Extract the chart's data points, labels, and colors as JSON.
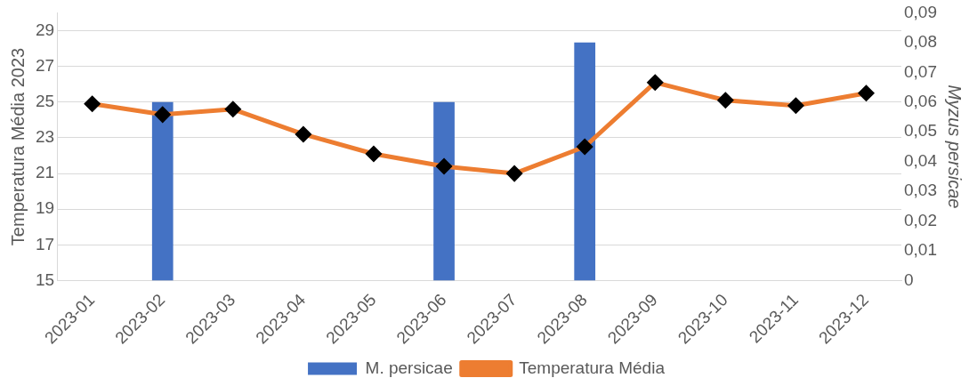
{
  "chart_data": {
    "type": "bar",
    "ylabel": "Temperatura Média 2023",
    "y2label": "Myzus persicae",
    "categories": [
      "2023-01",
      "2023-02",
      "2023-03",
      "2023-04",
      "2023-05",
      "2023-06",
      "2023-07",
      "2023-08",
      "2023-09",
      "2023-10",
      "2023-11",
      "2023-12"
    ],
    "series": [
      {
        "name": "M. persicae",
        "axis": "y2",
        "color": "#4472c4",
        "values": [
          0,
          0.06,
          0,
          0,
          0,
          0.06,
          0,
          0.08,
          0,
          0,
          0,
          0
        ]
      },
      {
        "name": "Temperatura Média",
        "type": "line",
        "axis": "y",
        "color": "#ed7d31",
        "marker": "diamond",
        "values": [
          24.9,
          24.3,
          24.6,
          23.2,
          22.1,
          21.4,
          21.0,
          22.5,
          26.1,
          25.1,
          24.8,
          25.5
        ]
      }
    ],
    "ylim": [
      15,
      30
    ],
    "yticks": [
      15,
      17,
      19,
      21,
      23,
      25,
      27,
      29
    ],
    "y2lim": [
      0,
      0.09
    ],
    "y2ticks": [
      {
        "value": 0,
        "label": "0"
      },
      {
        "value": 0.01,
        "label": "0,01"
      },
      {
        "value": 0.02,
        "label": "0,02"
      },
      {
        "value": 0.03,
        "label": "0,03"
      },
      {
        "value": 0.04,
        "label": "0,04"
      },
      {
        "value": 0.05,
        "label": "0,05"
      },
      {
        "value": 0.06,
        "label": "0,06"
      },
      {
        "value": 0.07,
        "label": "0,07"
      },
      {
        "value": 0.08,
        "label": "0,08"
      },
      {
        "value": 0.09,
        "label": "0,09"
      }
    ],
    "grid": "y",
    "legend": "bottom"
  }
}
